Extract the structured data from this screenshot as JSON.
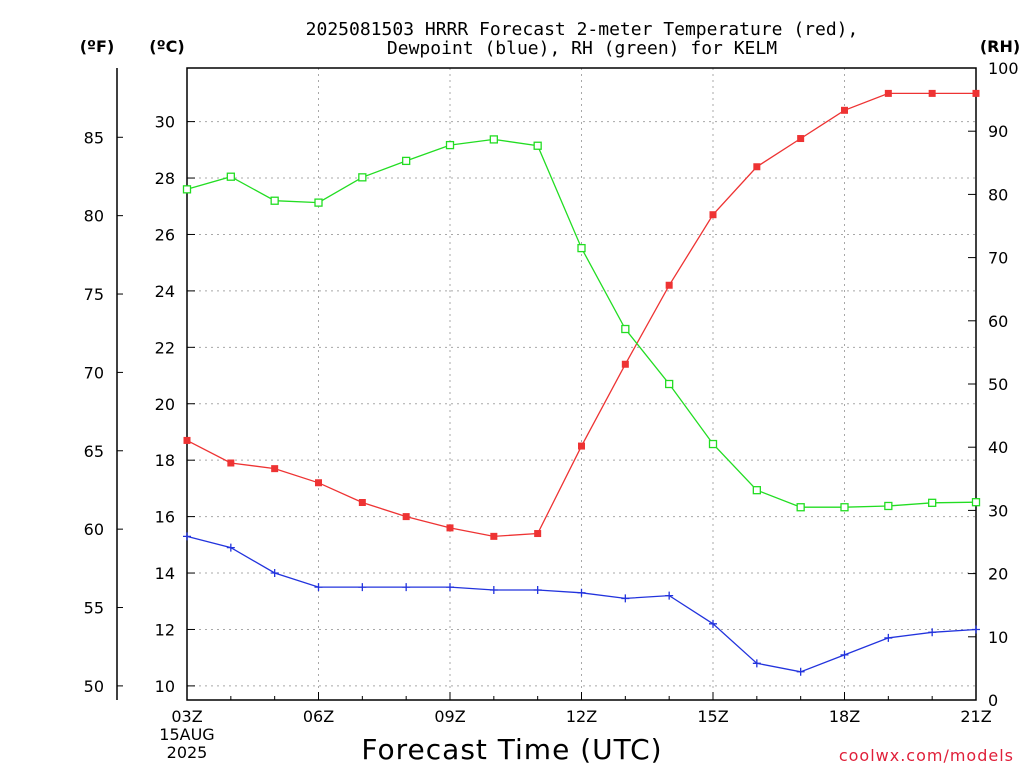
{
  "chart_data": {
    "type": "line",
    "title_line1": "2025081503 HRRR Forecast 2-meter Temperature (red),",
    "title_line2": "Dewpoint (blue), RH (green) for KELM",
    "xlabel": "Forecast Time (UTC)",
    "unit_labels": {
      "fahrenheit": "(ºF)",
      "celsius": "(ºC)",
      "rh": "(RH)"
    },
    "x_hours": [
      3,
      4,
      5,
      6,
      7,
      8,
      9,
      10,
      11,
      12,
      13,
      14,
      15,
      16,
      17,
      18,
      19,
      20,
      21
    ],
    "x_ticks": [
      "03Z",
      "06Z",
      "09Z",
      "12Z",
      "15Z",
      "18Z",
      "21Z"
    ],
    "x_tick_hours": [
      3,
      6,
      9,
      12,
      15,
      18,
      21
    ],
    "date_label_line1": "15AUG",
    "date_label_line2": "2025",
    "xlim": [
      3,
      21
    ],
    "y_celsius_ticks": [
      "10",
      "12",
      "14",
      "16",
      "18",
      "20",
      "22",
      "24",
      "26",
      "28",
      "30"
    ],
    "y_fahrenheit_ticks": [
      "50",
      "55",
      "60",
      "65",
      "70",
      "75",
      "80",
      "85"
    ],
    "y_rh_ticks": [
      "0",
      "10",
      "20",
      "30",
      "40",
      "50",
      "60",
      "70",
      "80",
      "90",
      "100"
    ],
    "ylim_celsius": [
      9.5,
      31.9
    ],
    "ylim_rh": [
      0,
      100
    ],
    "grid": true,
    "series": [
      {
        "name": "Temperature",
        "axis": "celsius",
        "color": "#ee3333",
        "marker": "filled-square",
        "values": [
          18.7,
          17.9,
          17.7,
          17.2,
          16.5,
          16.0,
          15.6,
          15.3,
          15.4,
          18.5,
          21.4,
          24.2,
          26.7,
          28.4,
          29.4,
          30.4,
          31.0,
          31.0,
          31.0
        ]
      },
      {
        "name": "Dewpoint",
        "axis": "celsius",
        "color": "#2233dd",
        "marker": "plus",
        "values": [
          15.3,
          14.9,
          14.0,
          13.5,
          13.5,
          13.5,
          13.5,
          13.4,
          13.4,
          13.3,
          13.1,
          13.2,
          12.2,
          10.8,
          10.5,
          11.1,
          11.7,
          11.9,
          12.0
        ]
      },
      {
        "name": "RH",
        "axis": "rh",
        "color": "#22dd22",
        "marker": "open-square",
        "values": [
          80.8,
          82.8,
          79.0,
          78.7,
          82.7,
          85.3,
          87.8,
          88.7,
          87.7,
          71.5,
          58.7,
          50.0,
          40.5,
          33.2,
          30.5,
          30.5,
          30.7,
          31.2,
          31.3
        ]
      }
    ]
  },
  "credit": "coolwx.com/models"
}
